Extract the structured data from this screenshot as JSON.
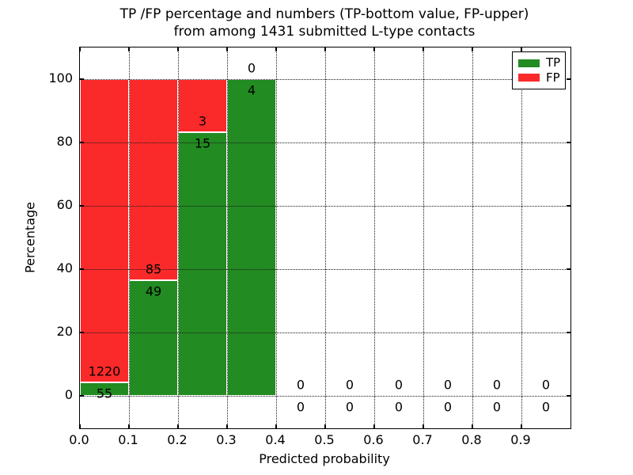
{
  "chart_data": {
    "type": "bar",
    "stacked": true,
    "title": "TP /FP percentage and numbers (TP-bottom value, FP-upper)\nfrom among 1431 submitted L-type contacts",
    "title_lines": [
      "TP /FP percentage and numbers (TP-bottom value, FP-upper)",
      "from among 1431 submitted L-type contacts"
    ],
    "xlabel": "Predicted probability",
    "ylabel": "Percentage",
    "xlim": [
      0.0,
      1.0
    ],
    "ylim": [
      -10,
      110
    ],
    "xticks": [
      0.0,
      0.1,
      0.2,
      0.3,
      0.4,
      0.5,
      0.6,
      0.7,
      0.8,
      0.9
    ],
    "yticks": [
      0,
      20,
      40,
      60,
      80,
      100
    ],
    "grid": {
      "style": "dotted",
      "axes": "both",
      "on_top_of_bars": true
    },
    "categories": [
      "0.0-0.1",
      "0.1-0.2",
      "0.2-0.3",
      "0.3-0.4",
      "0.4-0.5",
      "0.5-0.6",
      "0.6-0.7",
      "0.7-0.8",
      "0.8-0.9",
      "0.9-1.0"
    ],
    "series": [
      {
        "name": "TP",
        "position": "bottom",
        "color": "#228b22",
        "counts": [
          55,
          49,
          15,
          4,
          0,
          0,
          0,
          0,
          0,
          0
        ]
      },
      {
        "name": "FP",
        "position": "top",
        "color": "#fb2a2a",
        "counts": [
          1220,
          85,
          3,
          0,
          0,
          0,
          0,
          0,
          0,
          0
        ]
      }
    ],
    "tp_percent_height": [
      4.3,
      36.6,
      83.3,
      100.0,
      null,
      null,
      null,
      null,
      null,
      null
    ],
    "bar_edge_color": "#ffffff",
    "legend": {
      "position": "upper right",
      "entries": [
        "TP",
        "FP"
      ]
    }
  }
}
